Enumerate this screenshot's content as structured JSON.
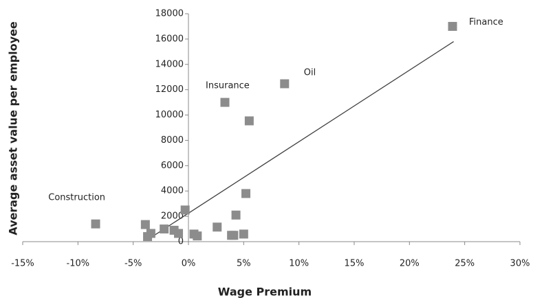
{
  "chart_data": {
    "type": "scatter",
    "x_label": "Wage Premium",
    "y_label": "Average asset value per employee",
    "xlim": [
      -15,
      30
    ],
    "ylim": [
      0,
      18000
    ],
    "xticks": [
      {
        "value": -15,
        "label": "-15%"
      },
      {
        "value": -10,
        "label": "-10%"
      },
      {
        "value": -5,
        "label": "-5%"
      },
      {
        "value": 0,
        "label": "0%"
      },
      {
        "value": 5,
        "label": "5%"
      },
      {
        "value": 10,
        "label": "10%"
      },
      {
        "value": 15,
        "label": "15%"
      },
      {
        "value": 20,
        "label": "20%"
      },
      {
        "value": 25,
        "label": "25%"
      },
      {
        "value": 30,
        "label": "30%"
      }
    ],
    "yticks": [
      0,
      2000,
      4000,
      6000,
      8000,
      10000,
      12000,
      14000,
      16000,
      18000
    ],
    "grid": false,
    "color": "#8c8c8c",
    "x": [
      23.9,
      8.7,
      3.3,
      5.5,
      5.2,
      -8.4,
      -3.9,
      -0.3,
      4.3,
      2.6,
      -2.2,
      -1.3,
      -3.4,
      -0.9,
      -3.7,
      0.5,
      0.8,
      3.9,
      4.1,
      5.0
    ],
    "values": [
      17000,
      12470,
      11000,
      9540,
      3800,
      1400,
      1350,
      2500,
      2100,
      1150,
      1000,
      900,
      650,
      650,
      400,
      600,
      450,
      500,
      500,
      600
    ],
    "annotations": [
      {
        "text": "Finance",
        "point": 0
      },
      {
        "text": "Oil",
        "point": 1
      },
      {
        "text": "Insurance",
        "point": 2
      },
      {
        "text": "Construction",
        "point": 5
      }
    ],
    "trendline": {
      "color": "#404040",
      "x": [
        -3.8,
        24
      ],
      "y": [
        100,
        15800
      ]
    }
  }
}
